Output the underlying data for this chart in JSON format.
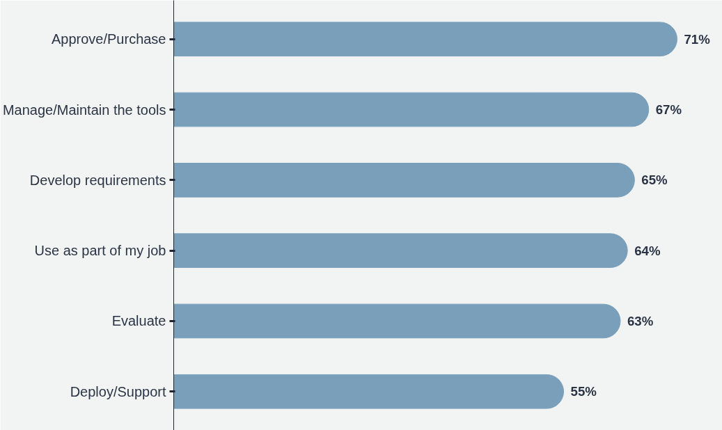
{
  "chart_data": {
    "type": "bar",
    "orientation": "horizontal",
    "categories": [
      "Approve/Purchase",
      "Manage/Maintain the tools",
      "Develop requirements",
      "Use as part of my job",
      "Evaluate",
      "Deploy/Support"
    ],
    "values": [
      71,
      67,
      65,
      64,
      63,
      55
    ],
    "value_labels": [
      "71%",
      "67%",
      "65%",
      "64%",
      "63%",
      "55%"
    ],
    "color": "#7a9fba",
    "grid": false
  }
}
